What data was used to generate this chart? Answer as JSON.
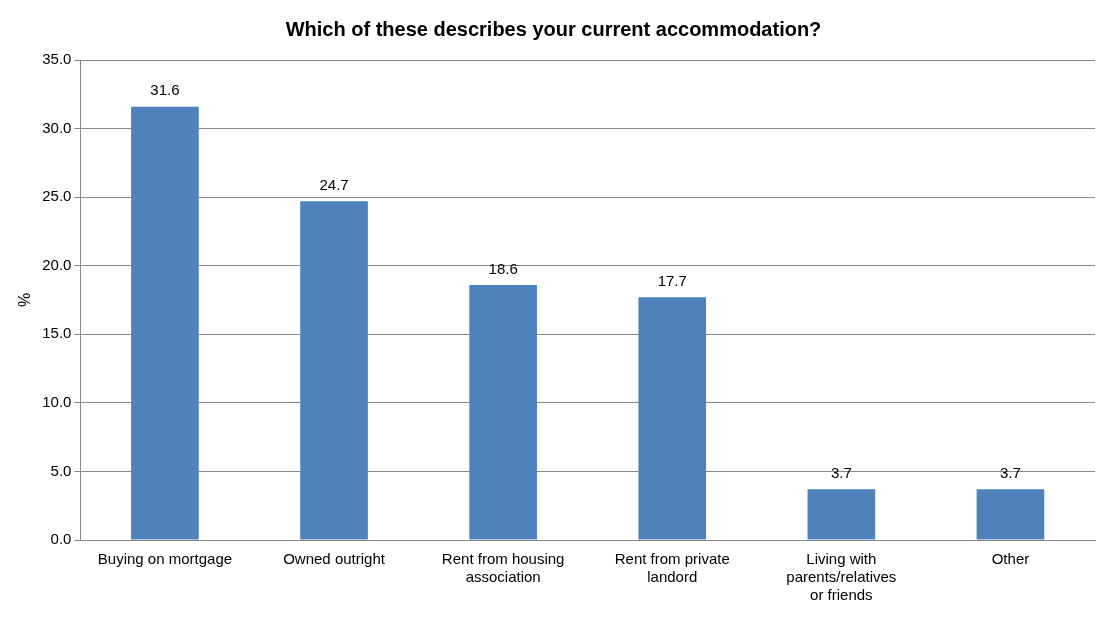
{
  "chart_data": {
    "type": "bar",
    "title": "Which of these describes your current accommodation?",
    "ylabel": "%",
    "categories": [
      "Buying on mortgage",
      "Owned outright",
      "Rent from housing association",
      "Rent from private landord",
      "Living with parents/relatives or friends",
      "Other"
    ],
    "values": [
      31.6,
      24.7,
      18.6,
      17.7,
      3.7,
      3.7
    ],
    "color": "#4f81bd",
    "ylim": [
      0,
      35
    ],
    "yticks": [
      {
        "value": 0,
        "label": "0.0"
      },
      {
        "value": 5,
        "label": "5.0"
      },
      {
        "value": 10,
        "label": "10.0"
      },
      {
        "value": 15,
        "label": "15.0"
      },
      {
        "value": 20,
        "label": "20.0"
      },
      {
        "value": 25,
        "label": "25.0"
      },
      {
        "value": 30,
        "label": "30.0"
      },
      {
        "value": 35,
        "label": "35.0"
      }
    ],
    "grid": "y",
    "data_labels": true,
    "legend": false
  }
}
